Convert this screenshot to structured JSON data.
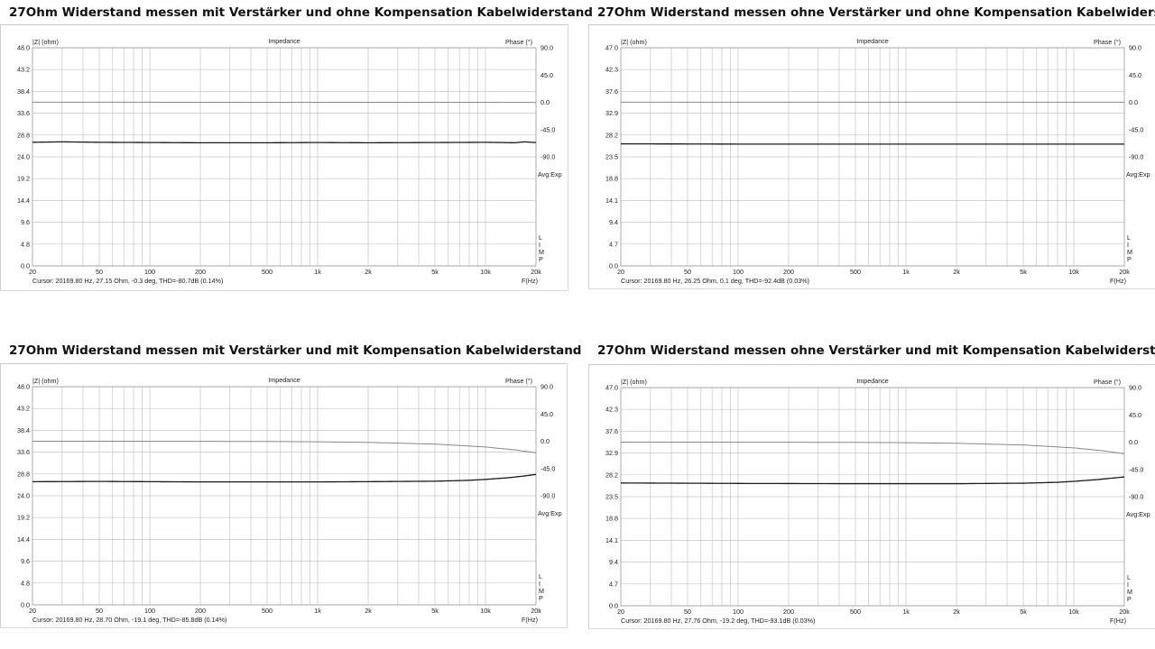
{
  "panels": [
    {
      "heading": {
        "prefix": "27Ohm Widerstand messen ",
        "amp": "mit",
        "mid": " Verstärker und ",
        "comp": "ohne",
        "suffix": " Kompensation Kabelwiderstand"
      },
      "chart_data": {
        "type": "line",
        "title": "Impedance",
        "ylabel": "|Z| (ohm)",
        "ylabel_right": "Phase (°)",
        "xlabel": "F(Hz)",
        "x_scale": "log",
        "xlim": [
          20,
          20000
        ],
        "x_ticks": [
          "20",
          "50",
          "100",
          "200",
          "500",
          "1k",
          "2k",
          "5k",
          "10k",
          "20k"
        ],
        "ylim": [
          0,
          48
        ],
        "y_ticks": [
          "0.0",
          "4.8",
          "9.6",
          "14.4",
          "19.2",
          "24.0",
          "28.8",
          "33.6",
          "38.4",
          "43.2",
          "48.0"
        ],
        "ylim_right": [
          -270,
          90
        ],
        "y_ticks_right": [
          "90.0",
          "45.0",
          "0.0",
          "-45.0",
          "-90.0"
        ],
        "right_annotation": "Avg:Exp",
        "limp_letters": [
          "L",
          "I",
          "M",
          "P"
        ],
        "cursor_text": "Cursor: 20169.80 Hz, 27.15 Ohm, -0.3 deg, THD=-80.7dB (0.14%)",
        "grid": true,
        "series": [
          {
            "name": "|Z| (ohm)",
            "axis": "left",
            "color": "#1a1a1a",
            "x": [
              20,
              30,
              50,
              100,
              200,
              500,
              1000,
              2000,
              5000,
              10000,
              15000,
              17000,
              20000
            ],
            "y": [
              27.2,
              27.3,
              27.2,
              27.15,
              27.1,
              27.1,
              27.15,
              27.1,
              27.15,
              27.2,
              27.1,
              27.3,
              27.15
            ]
          },
          {
            "name": "Phase (°)",
            "axis": "right",
            "color": "#888888",
            "x": [
              20,
              100,
              1000,
              10000,
              20000
            ],
            "y": [
              0.2,
              0.1,
              0.0,
              0.0,
              -0.3
            ]
          }
        ]
      }
    },
    {
      "heading": {
        "prefix": "27Ohm Widerstand messen ",
        "amp": "ohne",
        "mid": " Verstärker und ",
        "comp": "ohne",
        "suffix": " Kompensation Kabelwiderstand"
      },
      "chart_data": {
        "type": "line",
        "title": "Impedance",
        "ylabel": "|Z| (ohm)",
        "ylabel_right": "Phase (°)",
        "xlabel": "F(Hz)",
        "x_scale": "log",
        "xlim": [
          20,
          20000
        ],
        "x_ticks": [
          "20",
          "50",
          "100",
          "200",
          "500",
          "1k",
          "2k",
          "5k",
          "10k",
          "20k"
        ],
        "ylim": [
          0,
          47
        ],
        "y_ticks": [
          "0.0",
          "4.7",
          "9.4",
          "14.1",
          "18.8",
          "23.5",
          "28.2",
          "32.9",
          "37.6",
          "42.3",
          "47.0"
        ],
        "ylim_right": [
          -270,
          90
        ],
        "y_ticks_right": [
          "90.0",
          "45.0",
          "0.0",
          "-45.0",
          "-90.0"
        ],
        "right_annotation": "Avg:Exp",
        "limp_letters": [
          "L",
          "I",
          "M",
          "P"
        ],
        "cursor_text": "Cursor: 20169.80 Hz, 26.25 Ohm, 0.1 deg, THD=-92.4dB (0.03%)",
        "grid": true,
        "series": [
          {
            "name": "|Z| (ohm)",
            "axis": "left",
            "color": "#1a1a1a",
            "x": [
              20,
              100,
              1000,
              10000,
              20000
            ],
            "y": [
              26.3,
              26.25,
              26.25,
              26.25,
              26.25
            ]
          },
          {
            "name": "Phase (°)",
            "axis": "right",
            "color": "#888888",
            "x": [
              20,
              100,
              1000,
              10000,
              20000
            ],
            "y": [
              0.1,
              0.1,
              0.1,
              0.1,
              0.1
            ]
          }
        ]
      }
    },
    {
      "heading": {
        "prefix": "27Ohm Widerstand messen ",
        "amp": "mit",
        "mid": " Verstärker und ",
        "comp": "mit",
        "suffix": " Kompensation Kabelwiderstand"
      },
      "chart_data": {
        "type": "line",
        "title": "Impedance",
        "ylabel": "|Z| (ohm)",
        "ylabel_right": "Phase (°)",
        "xlabel": "F(Hz)",
        "x_scale": "log",
        "xlim": [
          20,
          20000
        ],
        "x_ticks": [
          "20",
          "50",
          "100",
          "200",
          "500",
          "1k",
          "2k",
          "5k",
          "10k",
          "20k"
        ],
        "ylim": [
          0,
          48
        ],
        "y_ticks": [
          "0.0",
          "4.8",
          "9.6",
          "14.4",
          "19.2",
          "24.0",
          "28.8",
          "33.6",
          "38.4",
          "43.2",
          "48.0"
        ],
        "ylim_right": [
          -270,
          90
        ],
        "y_ticks_right": [
          "90.0",
          "45.0",
          "0.0",
          "-45.0",
          "-90.0"
        ],
        "right_annotation": "Avg:Exp",
        "limp_letters": [
          "L",
          "I",
          "M",
          "P"
        ],
        "cursor_text": "Cursor: 20169.80 Hz, 28.70 Ohm, -19.1 deg, THD=-85.8dB (0.14%)",
        "grid": true,
        "series": [
          {
            "name": "|Z| (ohm)",
            "axis": "left",
            "color": "#1a1a1a",
            "x": [
              20,
              50,
              100,
              200,
              500,
              1000,
              2000,
              5000,
              8000,
              10000,
              14000,
              17000,
              20000
            ],
            "y": [
              27.1,
              27.15,
              27.1,
              27.05,
              27.05,
              27.05,
              27.1,
              27.2,
              27.4,
              27.6,
              28.0,
              28.35,
              28.7
            ]
          },
          {
            "name": "Phase (°)",
            "axis": "right",
            "color": "#888888",
            "x": [
              20,
              100,
              500,
              1000,
              2000,
              5000,
              10000,
              15000,
              20000
            ],
            "y": [
              0.0,
              -0.1,
              -0.4,
              -0.9,
              -1.9,
              -4.7,
              -9.5,
              -14.3,
              -19.1
            ]
          }
        ]
      }
    },
    {
      "heading": {
        "prefix": "27Ohm Widerstand messen ",
        "amp": "ohne",
        "mid": " Verstärker und ",
        "comp": "mit",
        "suffix": " Kompensation Kabelwiderstand"
      },
      "chart_data": {
        "type": "line",
        "title": "Impedance",
        "ylabel": "|Z| (ohm)",
        "ylabel_right": "Phase (°)",
        "xlabel": "F(Hz)",
        "x_scale": "log",
        "xlim": [
          20,
          20000
        ],
        "x_ticks": [
          "20",
          "50",
          "100",
          "200",
          "500",
          "1k",
          "2k",
          "5k",
          "10k",
          "20k"
        ],
        "ylim": [
          0,
          47
        ],
        "y_ticks": [
          "0.0",
          "4.7",
          "9.4",
          "14.1",
          "18.8",
          "23.5",
          "28.2",
          "32.9",
          "37.6",
          "42.3",
          "47.0"
        ],
        "ylim_right": [
          -270,
          90
        ],
        "y_ticks_right": [
          "90.0",
          "45.0",
          "0.0",
          "-45.0",
          "-90.0"
        ],
        "right_annotation": "Avg:Exp",
        "limp_letters": [
          "L",
          "I",
          "M",
          "P"
        ],
        "cursor_text": "Cursor: 20169.80 Hz, 27.76 Ohm, -19.2 deg, THD=-93.1dB (0.03%)",
        "grid": true,
        "series": [
          {
            "name": "|Z| (ohm)",
            "axis": "left",
            "color": "#1a1a1a",
            "x": [
              20,
              100,
              500,
              1000,
              2000,
              5000,
              8000,
              10000,
              14000,
              17000,
              20000
            ],
            "y": [
              26.45,
              26.35,
              26.3,
              26.3,
              26.3,
              26.4,
              26.6,
              26.8,
              27.2,
              27.5,
              27.76
            ]
          },
          {
            "name": "Phase (°)",
            "axis": "right",
            "color": "#888888",
            "x": [
              20,
              100,
              500,
              1000,
              2000,
              5000,
              10000,
              15000,
              20000
            ],
            "y": [
              0.0,
              -0.1,
              -0.4,
              -0.9,
              -1.9,
              -4.7,
              -9.5,
              -14.3,
              -19.2
            ]
          }
        ]
      }
    }
  ]
}
